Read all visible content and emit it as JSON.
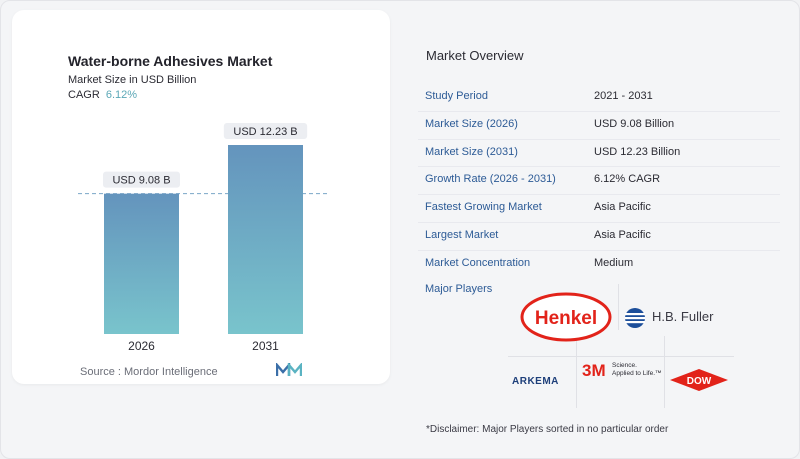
{
  "chart_data": {
    "type": "bar",
    "title": "Water-borne Adhesives Market",
    "subtitle": "Market Size in USD Billion",
    "cagr_label": "CAGR",
    "cagr_value": "6.12%",
    "categories": [
      "2026",
      "2031"
    ],
    "values": [
      9.08,
      12.23
    ],
    "data_labels": [
      "USD 9.08 B",
      "USD 12.23 B"
    ],
    "ylim": [
      0,
      12.23
    ],
    "grid": false,
    "reference_line": true,
    "colors": {
      "bar_top": "#6494bd",
      "bar_bottom": "#79c4cc",
      "label_bg": "#eceef2",
      "dash": "#7aa6c8"
    }
  },
  "source_text": "Source :  Mordor Intelligence",
  "overview": {
    "title": "Market Overview",
    "rows": [
      {
        "label": "Study Period",
        "value": "2021 - 2031"
      },
      {
        "label": "Market Size (2026)",
        "value": "USD 9.08 Billion"
      },
      {
        "label": "Market Size (2031)",
        "value": "USD 12.23 Billion"
      },
      {
        "label": "Growth Rate (2026 - 2031)",
        "value": "6.12% CAGR"
      },
      {
        "label": "Fastest Growing Market",
        "value": "Asia Pacific"
      },
      {
        "label": "Largest Market",
        "value": "Asia Pacific"
      },
      {
        "label": "Market Concentration",
        "value": "Medium"
      }
    ],
    "players_label": "Major Players",
    "logos": {
      "henkel": "Henkel",
      "hb_fuller": "H.B. Fuller",
      "arkema": "ARKEMA",
      "three_m": "3M",
      "three_m_tagline_1": "Science.",
      "three_m_tagline_2": "Applied to Life.™",
      "dow": "DOW"
    },
    "disclaimer": "*Disclaimer: Major Players sorted in no particular order"
  },
  "colors": {
    "label_blue": "#2d5b96",
    "henkel_red": "#e2231a",
    "fuller_blue": "#1c4e9a",
    "arkema_blue": "#1e3f7a",
    "arkema_teal": "#3aa6c9",
    "dow_red": "#e2231a"
  }
}
